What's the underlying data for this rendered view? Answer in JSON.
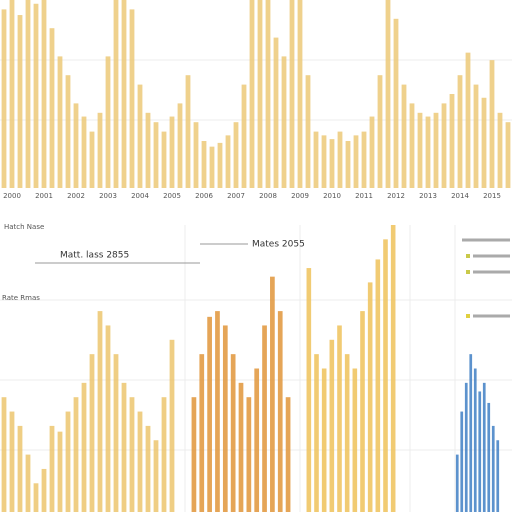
{
  "chart_data": [
    {
      "type": "bar",
      "color": "#ecc978",
      "ylim": [
        0,
        100
      ],
      "categories": [
        null,
        "2000",
        null,
        null,
        null,
        "2001",
        null,
        null,
        null,
        "2002",
        null,
        null,
        null,
        "2003",
        null,
        null,
        null,
        "2004",
        null,
        null,
        null,
        "2005",
        null,
        null,
        null,
        "2006",
        null,
        null,
        null,
        "2007",
        null,
        null,
        null,
        "2008",
        null,
        null,
        null,
        "2009",
        null,
        null,
        null,
        "2010",
        null,
        null,
        null,
        "2011",
        null,
        null,
        null,
        "2012",
        null,
        null,
        null,
        "2013",
        null,
        null,
        null,
        "2014",
        null,
        null,
        null,
        "2015",
        null,
        null
      ],
      "values": [
        95,
        100,
        92,
        100,
        98,
        100,
        85,
        70,
        60,
        45,
        38,
        30,
        40,
        70,
        100,
        100,
        95,
        55,
        40,
        35,
        30,
        38,
        45,
        60,
        35,
        25,
        22,
        24,
        28,
        35,
        55,
        100,
        100,
        100,
        80,
        70,
        100,
        100,
        60,
        30,
        28,
        26,
        30,
        25,
        28,
        30,
        38,
        60,
        100,
        90,
        55,
        45,
        40,
        38,
        40,
        45,
        50,
        60,
        72,
        55,
        48,
        68,
        40,
        35
      ]
    },
    {
      "type": "bar",
      "color": "#ecc56e",
      "ylim": [
        0,
        100
      ],
      "title": "Matt. lass 2855",
      "subtitle": "Hatch Nase",
      "annotation": "Rate Rmas",
      "values": [
        40,
        35,
        30,
        20,
        10,
        15,
        30,
        28,
        35,
        40,
        45,
        55,
        70,
        65,
        55,
        45,
        40,
        35,
        30,
        25,
        40,
        60
      ]
    },
    {
      "type": "bar",
      "color": "#e0953a",
      "ylim": [
        0,
        100
      ],
      "values": [
        40,
        55,
        68,
        70,
        65,
        55,
        45,
        40,
        50,
        65,
        82,
        70,
        40
      ]
    },
    {
      "type": "bar",
      "color": "#eec25a",
      "ylim": [
        0,
        100
      ],
      "title": "Mates 2055",
      "values": [
        85,
        55,
        50,
        60,
        65,
        55,
        50,
        70,
        80,
        88,
        95,
        100
      ]
    },
    {
      "type": "bar",
      "color": "#3f7fc4",
      "ylim": [
        0,
        100
      ],
      "values": [
        20,
        35,
        45,
        55,
        50,
        42,
        45,
        38,
        30,
        25
      ]
    }
  ]
}
